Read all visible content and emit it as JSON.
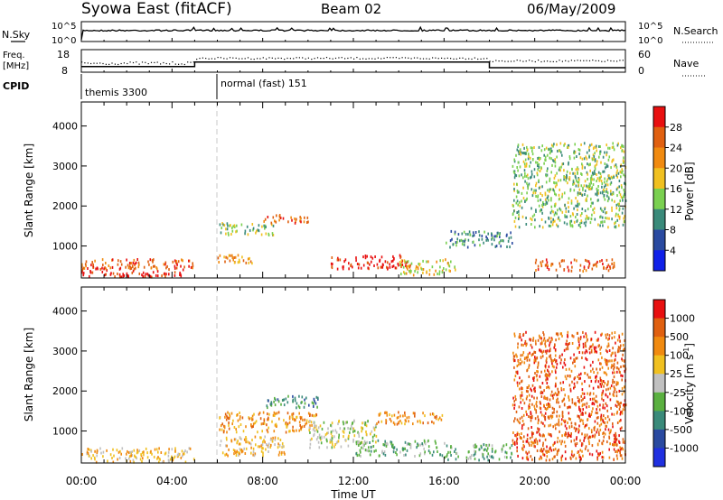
{
  "header": {
    "title": "Syowa East (fitACF)",
    "beam": "Beam 02",
    "date": "06/May/2009"
  },
  "noise_panel": {
    "left_label": "N.Sky",
    "right_label": "N.Search",
    "left_ticks": [
      "10^5",
      "10^0"
    ],
    "right_ticks": [
      "10^5",
      "10^0"
    ]
  },
  "freq_panel": {
    "left_label_1": "Freq.",
    "left_label_2": "[MHz]",
    "right_label": "Nave",
    "left_ticks": [
      "18",
      "8"
    ],
    "right_ticks": [
      "60",
      "0"
    ],
    "freq_mhz": [
      {
        "start_h": 0.0,
        "end_h": 5.0,
        "value": 10.5
      },
      {
        "start_h": 5.0,
        "end_h": 18.0,
        "value": 12.5
      },
      {
        "start_h": 18.0,
        "end_h": 24.0,
        "value": 10.0
      }
    ]
  },
  "cpid_panel": {
    "label": "CPID",
    "modes": [
      {
        "start_h": 0.0,
        "name": "themis 3300"
      },
      {
        "start_h": 6.0,
        "name": "normal (fast) 151"
      }
    ]
  },
  "colors": {
    "blue": "#2030e0",
    "dark_blue": "#2a4aa0",
    "teal": "#3a8a7a",
    "green": "#5ab040",
    "light_green": "#7ad050",
    "yellow": "#f0c020",
    "orange": "#f08a10",
    "dark_orange": "#e06010",
    "red": "#e81010",
    "gray": "#c0c0c0"
  },
  "chart_data": [
    {
      "type": "heatmap",
      "name": "power",
      "ylabel": "Slant Range [km]",
      "xlabel": "",
      "x_ticks": [
        "00:00",
        "04:00",
        "08:00",
        "12:00",
        "16:00",
        "20:00",
        "00:00"
      ],
      "y_ticks": [
        1000,
        2000,
        3000,
        4000
      ],
      "xlim": [
        0,
        24
      ],
      "ylim": [
        200,
        4600
      ],
      "colorbar": {
        "label": "Power [dB]",
        "ticks": [
          "4",
          "8",
          "12",
          "16",
          "20",
          "24",
          "28"
        ],
        "colors": [
          "#1020e8",
          "#2a4aa0",
          "#3a8a7a",
          "#7ad050",
          "#f0c020",
          "#f08a10",
          "#e06010",
          "#e81010"
        ]
      },
      "regions": [
        {
          "t0": 0.0,
          "t1": 2.5,
          "r0": 250,
          "r1": 500,
          "level": 7
        },
        {
          "t0": 0.0,
          "t1": 5.0,
          "r0": 450,
          "r1": 700,
          "level": 6
        },
        {
          "t0": 2.5,
          "t1": 4.5,
          "r0": 250,
          "r1": 450,
          "level": 7
        },
        {
          "t0": 6.0,
          "t1": 7.5,
          "r0": 600,
          "r1": 800,
          "level": 5
        },
        {
          "t0": 6.0,
          "t1": 8.5,
          "r0": 1300,
          "r1": 1600,
          "level": 3
        },
        {
          "t0": 8.0,
          "t1": 10.0,
          "r0": 1600,
          "r1": 1800,
          "level": 6
        },
        {
          "t0": 11.0,
          "t1": 14.5,
          "r0": 450,
          "r1": 800,
          "level": 7
        },
        {
          "t0": 14.0,
          "t1": 16.5,
          "r0": 300,
          "r1": 700,
          "level": 4
        },
        {
          "t0": 16.0,
          "t1": 19.0,
          "r0": 1000,
          "r1": 1400,
          "level": 2
        },
        {
          "t0": 20.0,
          "t1": 23.5,
          "r0": 400,
          "r1": 700,
          "level": 6
        },
        {
          "t0": 19.0,
          "t1": 24.0,
          "r0": 1500,
          "r1": 3600,
          "level": 3
        }
      ]
    },
    {
      "type": "heatmap",
      "name": "velocity",
      "ylabel": "Slant Range [km]",
      "xlabel": "Time UT",
      "x_ticks": [
        "00:00",
        "04:00",
        "08:00",
        "12:00",
        "16:00",
        "20:00",
        "00:00"
      ],
      "y_ticks": [
        1000,
        2000,
        3000,
        4000
      ],
      "xlim": [
        0,
        24
      ],
      "ylim": [
        200,
        4600
      ],
      "colorbar": {
        "label": "Velocity [m s",
        "label_sup": "-1",
        "label_end": "]",
        "ticks": [
          "1000",
          "500",
          "100",
          "25",
          "-25",
          "-100",
          "-500",
          "-1000"
        ],
        "colors": [
          "#2030e0",
          "#2a4aa0",
          "#3a8a7a",
          "#5ab040",
          "#c0c0c0",
          "#f0c020",
          "#f08a10",
          "#e06010",
          "#e81010"
        ]
      },
      "regions": [
        {
          "t0": 0.0,
          "t1": 5.0,
          "r0": 250,
          "r1": 600,
          "level": 5
        },
        {
          "t0": 6.0,
          "t1": 9.0,
          "r0": 400,
          "r1": 900,
          "level": 5
        },
        {
          "t0": 6.0,
          "t1": 10.5,
          "r0": 1000,
          "r1": 1500,
          "level": 6
        },
        {
          "t0": 8.0,
          "t1": 10.5,
          "r0": 1600,
          "r1": 1900,
          "level": 2
        },
        {
          "t0": 10.0,
          "t1": 13.0,
          "r0": 600,
          "r1": 1300,
          "level": 4
        },
        {
          "t0": 12.0,
          "t1": 16.0,
          "r0": 400,
          "r1": 800,
          "level": 3
        },
        {
          "t0": 13.0,
          "t1": 16.0,
          "r0": 1200,
          "r1": 1500,
          "level": 6
        },
        {
          "t0": 16.0,
          "t1": 19.0,
          "r0": 300,
          "r1": 700,
          "level": 3
        },
        {
          "t0": 19.0,
          "t1": 24.0,
          "r0": 300,
          "r1": 3500,
          "level": 7
        }
      ]
    }
  ]
}
